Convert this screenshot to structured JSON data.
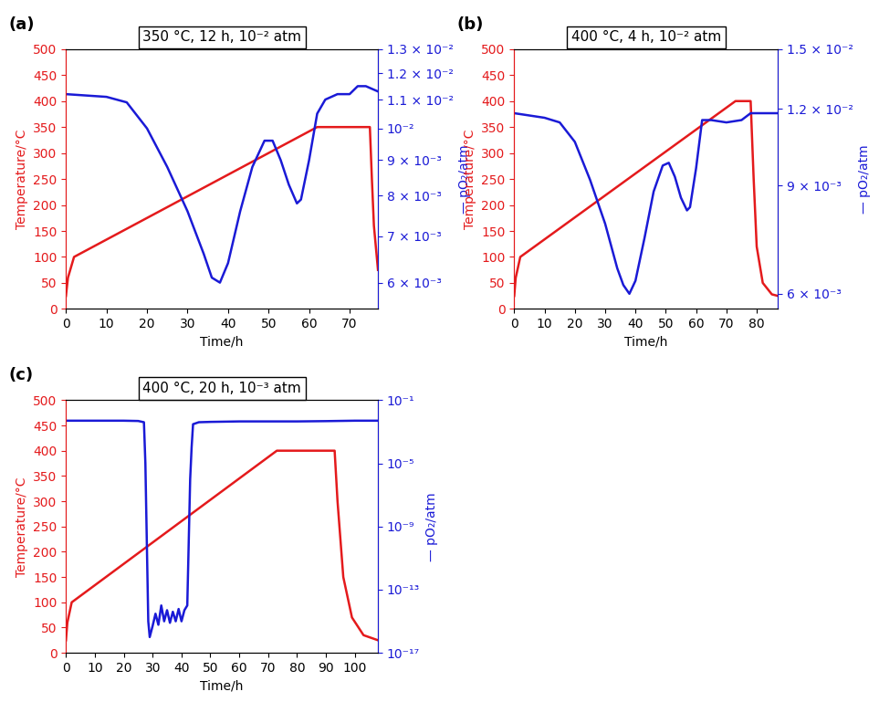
{
  "chart_data": [
    {
      "type": "line",
      "panel_label": "(a)",
      "title": "350 °C, 12 h, 10⁻² atm",
      "x_label": "Time/h",
      "y_label": "Temperature/°C",
      "y2_label": "— pO₂/atm",
      "log": "y2",
      "xlim": [
        0,
        77
      ],
      "xticks": [
        0,
        10,
        20,
        30,
        40,
        50,
        60,
        70
      ],
      "ylim": [
        0,
        500
      ],
      "yticks": [
        0,
        50,
        100,
        150,
        200,
        250,
        300,
        350,
        400,
        450,
        500
      ],
      "y2lim": [
        0.0055,
        0.013
      ],
      "y2ticks": [
        {
          "value": 0.006,
          "label": "6 × 10⁻³"
        },
        {
          "value": 0.007,
          "label": "7 × 10⁻³"
        },
        {
          "value": 0.008,
          "label": "8 × 10⁻³"
        },
        {
          "value": 0.009,
          "label": "9 × 10⁻³"
        },
        {
          "value": 0.01,
          "label": "10⁻²"
        },
        {
          "value": 0.011,
          "label": "1.1 × 10⁻²"
        },
        {
          "value": 0.012,
          "label": "1.2 × 10⁻²"
        },
        {
          "value": 0.013,
          "label": "1.3 × 10⁻²"
        }
      ],
      "series": [
        {
          "color": "#e41a1c",
          "axis": "y",
          "x": [
            0,
            0.5,
            2,
            62,
            75,
            75.5,
            76,
            77
          ],
          "values": [
            25,
            60,
            100,
            350,
            350,
            250,
            160,
            75
          ]
        },
        {
          "color": "#1a1ad6",
          "axis": "y2",
          "x": [
            0,
            5,
            10,
            15,
            20,
            25,
            30,
            34,
            36,
            38,
            40,
            43,
            46,
            49,
            51,
            53,
            55,
            57,
            58,
            60,
            62,
            64,
            67,
            70,
            72,
            74,
            77
          ],
          "values": [
            0.0112,
            0.01115,
            0.0111,
            0.0109,
            0.01,
            0.0088,
            0.0076,
            0.0066,
            0.0061,
            0.006,
            0.0064,
            0.0076,
            0.0088,
            0.0096,
            0.0096,
            0.009,
            0.0083,
            0.0078,
            0.0079,
            0.009,
            0.0105,
            0.011,
            0.0112,
            0.0112,
            0.0115,
            0.0115,
            0.0113
          ]
        }
      ]
    },
    {
      "type": "line",
      "panel_label": "(b)",
      "title": "400 °C, 4 h, 10⁻² atm",
      "x_label": "Time/h",
      "y_label": "Temperature/°C",
      "y2_label": "— pO₂/atm",
      "log": "y2",
      "xlim": [
        0,
        87
      ],
      "xticks": [
        0,
        10,
        20,
        30,
        40,
        50,
        60,
        70,
        80
      ],
      "ylim": [
        0,
        500
      ],
      "yticks": [
        0,
        50,
        100,
        150,
        200,
        250,
        300,
        350,
        400,
        450,
        500
      ],
      "y2lim": [
        0.00567,
        0.015
      ],
      "y2ticks": [
        {
          "value": 0.006,
          "label": "6 × 10⁻³"
        },
        {
          "value": 0.009,
          "label": "9 × 10⁻³"
        },
        {
          "value": 0.012,
          "label": "1.2 × 10⁻²"
        },
        {
          "value": 0.015,
          "label": "1.5 × 10⁻²"
        }
      ],
      "series": [
        {
          "color": "#e41a1c",
          "axis": "y",
          "x": [
            0,
            0.5,
            2,
            73,
            78,
            79,
            80,
            82,
            85,
            87
          ],
          "values": [
            25,
            60,
            100,
            400,
            400,
            250,
            120,
            50,
            28,
            25
          ]
        },
        {
          "color": "#1a1ad6",
          "axis": "y2",
          "x": [
            0,
            5,
            10,
            15,
            20,
            25,
            30,
            34,
            36,
            38,
            40,
            43,
            46,
            49,
            51,
            53,
            55,
            57,
            58,
            60,
            62,
            65,
            70,
            75,
            78,
            82,
            87
          ],
          "values": [
            0.0118,
            0.0117,
            0.0116,
            0.0114,
            0.0106,
            0.0092,
            0.0078,
            0.0066,
            0.0062,
            0.006,
            0.0063,
            0.0074,
            0.0088,
            0.0097,
            0.0098,
            0.0093,
            0.0086,
            0.0082,
            0.0083,
            0.0096,
            0.0115,
            0.0115,
            0.0114,
            0.0115,
            0.0118,
            0.0118,
            0.0118
          ]
        }
      ]
    },
    {
      "type": "line",
      "panel_label": "(c)",
      "title": "400 °C, 20 h, 10⁻³ atm",
      "x_label": "Time/h",
      "y_label": "Temperature/°C",
      "y2_label": "— pO₂/atm",
      "log": "y2",
      "xlim": [
        0,
        108
      ],
      "xticks": [
        0,
        10,
        20,
        30,
        40,
        50,
        60,
        70,
        80,
        90,
        100
      ],
      "ylim": [
        0,
        500
      ],
      "yticks": [
        0,
        50,
        100,
        150,
        200,
        250,
        300,
        350,
        400,
        450,
        500
      ],
      "y2lim": [
        1e-17,
        0.1
      ],
      "y2ticks": [
        {
          "value": 0.1,
          "label": "10⁻¹"
        },
        {
          "value": 1e-05,
          "label": "10⁻⁵"
        },
        {
          "value": 1e-09,
          "label": "10⁻⁹"
        },
        {
          "value": 1e-13,
          "label": "10⁻¹³"
        },
        {
          "value": 1e-17,
          "label": "10⁻¹⁷"
        }
      ],
      "series": [
        {
          "color": "#e41a1c",
          "axis": "y",
          "x": [
            0,
            0.5,
            2,
            73,
            93,
            94,
            96,
            99,
            103,
            108
          ],
          "values": [
            25,
            60,
            100,
            400,
            400,
            300,
            150,
            70,
            35,
            25
          ]
        },
        {
          "color": "#1a1ad6",
          "axis": "y2",
          "x": [
            0,
            10,
            20,
            25,
            27,
            27.5,
            28,
            28.5,
            29,
            30,
            31,
            32,
            33,
            34,
            35,
            36,
            37,
            38,
            39,
            40,
            41,
            42,
            42.5,
            43,
            43.5,
            44,
            46,
            50,
            60,
            70,
            80,
            90,
            100,
            108
          ],
          "values": [
            0.005,
            0.005,
            0.005,
            0.0048,
            0.004,
            1e-05,
            1e-10,
            1e-15,
            1e-16,
            5e-16,
            3e-15,
            6e-16,
            1e-14,
            1e-15,
            5e-15,
            8e-16,
            4e-15,
            1e-15,
            6e-15,
            1e-15,
            5e-15,
            1e-14,
            1e-10,
            1e-06,
            0.0001,
            0.003,
            0.004,
            0.0042,
            0.0045,
            0.0045,
            0.0045,
            0.0047,
            0.005,
            0.005
          ]
        }
      ]
    }
  ]
}
